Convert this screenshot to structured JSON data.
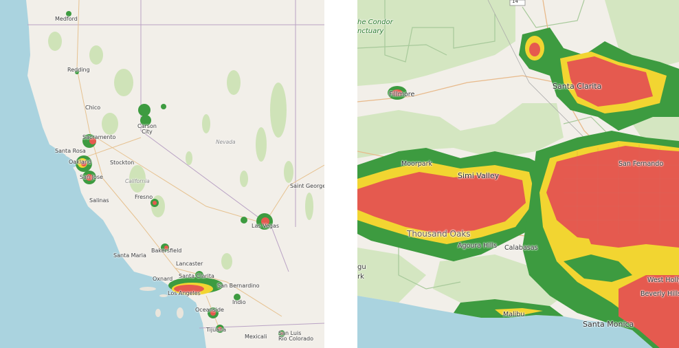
{
  "left_map": {
    "labels": {
      "medford": "Medford",
      "redding": "Redding",
      "chico": "Chico",
      "carson_city": "Carson\nCity",
      "sacramento": "Sacramento",
      "santa_rosa": "Santa Rosa",
      "oakland": "Oakland",
      "stockton": "Stockton",
      "san_jose": "San Jose",
      "salinas": "Salinas",
      "fresno": "Fresno",
      "nevada": "Nevada",
      "california": "California",
      "saint_george": "Saint George",
      "las_vegas": "Las Vegas",
      "santa_maria": "Santa Maria",
      "bakersfield": "Bakersfield",
      "lancaster": "Lancaster",
      "santa_clarita": "Santa Clarita",
      "oxnard": "Oxnard",
      "san_bernardino": "San Bernardino",
      "los_angeles": "Los Angeles",
      "indio": "Indio",
      "oceanside": "Oceanside",
      "tijuana": "Tijuana",
      "mexicali": "Mexicali",
      "san_luis_rio_colorado": "San Luis\nRío Colorado"
    }
  },
  "right_map": {
    "labels": {
      "condor_sanctuary": "he Condor\nnctuary",
      "fillmore": "Fillmore",
      "santa_clarita": "Santa Clarita",
      "moorpark": "Moorpark",
      "simi_valley": "Simi Valley",
      "san_fernando": "San Fernando",
      "thousand_oaks": "Thousand Oaks",
      "agoura_hills": "Agoura Hills",
      "calabasas": "Calabasas",
      "malibu": "Malibu",
      "west_holly": "West Holly",
      "beverly_hills": "Beverly Hills",
      "santa_monica": "Santa Monica",
      "highway_shield": "14",
      "gu": "gu",
      "rk": "rk"
    }
  },
  "colors": {
    "land": "#f2efe9",
    "water": "#aad3df",
    "park": "#c8dfb2",
    "heat_low": "#3d9b40",
    "heat_mid": "#f2d531",
    "heat_high": "#e55a4f",
    "road": "#e8c79a"
  }
}
